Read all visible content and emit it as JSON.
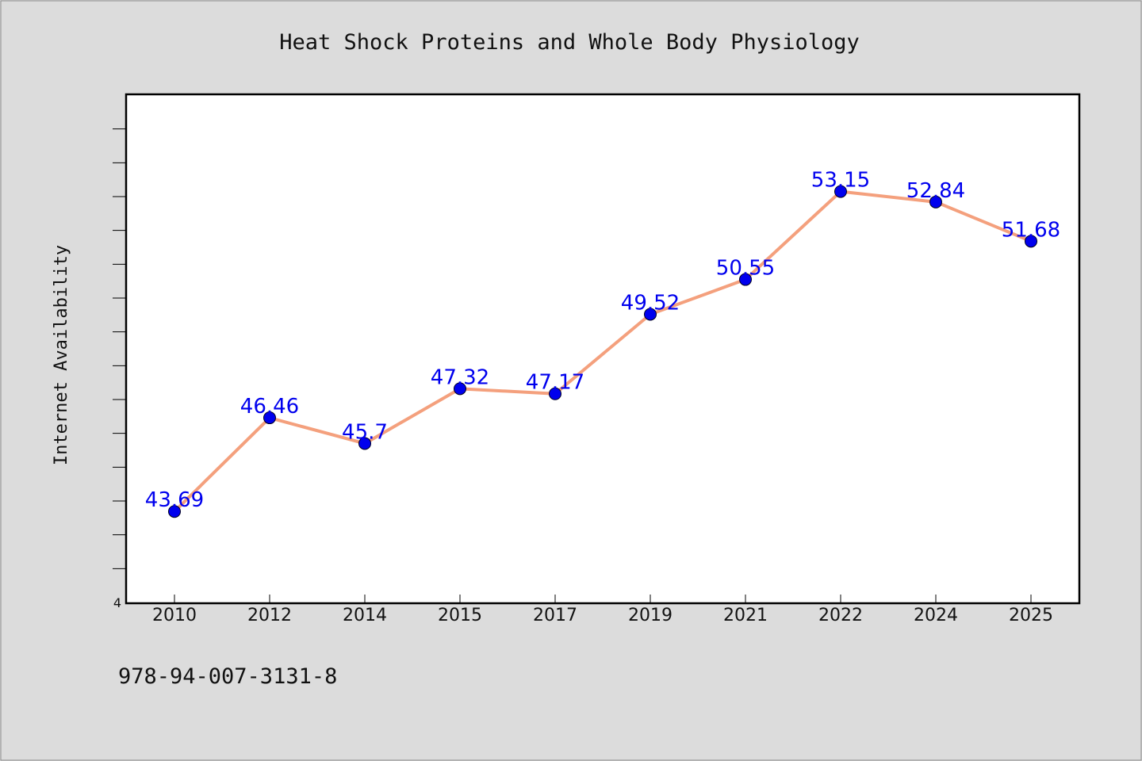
{
  "chart_data": {
    "type": "line",
    "title": "Heat Shock Proteins and Whole Body Physiology",
    "xlabel": "",
    "ylabel": "Internet Availability",
    "categories": [
      "2010",
      "2012",
      "2014",
      "2015",
      "2017",
      "2019",
      "2021",
      "2022",
      "2024",
      "2025"
    ],
    "series": [
      {
        "values": [
          43.69,
          46.46,
          45.7,
          47.32,
          47.17,
          49.52,
          50.55,
          53.15,
          52.84,
          51.68
        ]
      }
    ],
    "data_labels": [
      "43.69",
      "46.46",
      "45.7",
      "47.32",
      "47.17",
      "49.52",
      "50.55",
      "53.15",
      "52.84",
      "51.68"
    ],
    "ylim": [
      41,
      56
    ],
    "y_tick_step": 1,
    "y_tick_labels_shown": [
      "4"
    ],
    "grid": false,
    "legend": "none",
    "line_color": "#f4a07d",
    "marker_color": "#0000ee",
    "label_color": "#0000ee"
  },
  "footer": {
    "isbn": "978-94-007-3131-8"
  }
}
